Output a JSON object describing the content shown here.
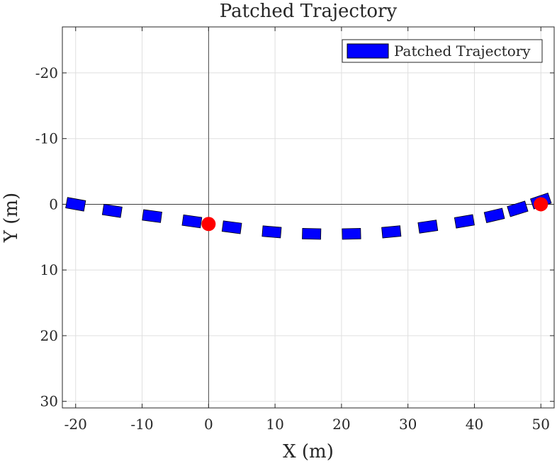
{
  "chart_data": {
    "type": "line",
    "title": "Patched Trajectory",
    "xlabel": "X (m)",
    "ylabel": "Y (m)",
    "xlim": [
      -22,
      52
    ],
    "ylim": [
      -27,
      31
    ],
    "y_reversed": true,
    "grid": true,
    "legend_placement": "top-right",
    "xticks": [
      -20,
      -10,
      0,
      10,
      20,
      30,
      40,
      50
    ],
    "yticks": [
      -20,
      -10,
      0,
      10,
      20,
      30
    ],
    "xtick_labels": [
      "-20",
      "-10",
      "0",
      "10",
      "20",
      "30",
      "40",
      "50"
    ],
    "ytick_labels": [
      "-20",
      "-10",
      "0",
      "10",
      "20",
      "30"
    ],
    "series": [
      {
        "name": "Patched Trajectory",
        "style": "patch-dashes",
        "color": "#0000ff",
        "edge_color": "#000000",
        "x": [
          -20,
          -14.5,
          -8.5,
          -2.5,
          3.5,
          9.5,
          15.5,
          21.5,
          27.5,
          33,
          38.5,
          43,
          46.5,
          50
        ],
        "y": [
          0,
          1,
          1.8,
          2.6,
          3.5,
          4.2,
          4.5,
          4.5,
          4.2,
          3.4,
          2.6,
          1.7,
          0.7,
          -0.5
        ]
      }
    ],
    "markers": [
      {
        "x": 0,
        "y": 3,
        "color": "#ff0000"
      },
      {
        "x": 50,
        "y": 0,
        "color": "#ff0000"
      }
    ],
    "legend": {
      "entries": [
        "Patched Trajectory"
      ]
    }
  }
}
